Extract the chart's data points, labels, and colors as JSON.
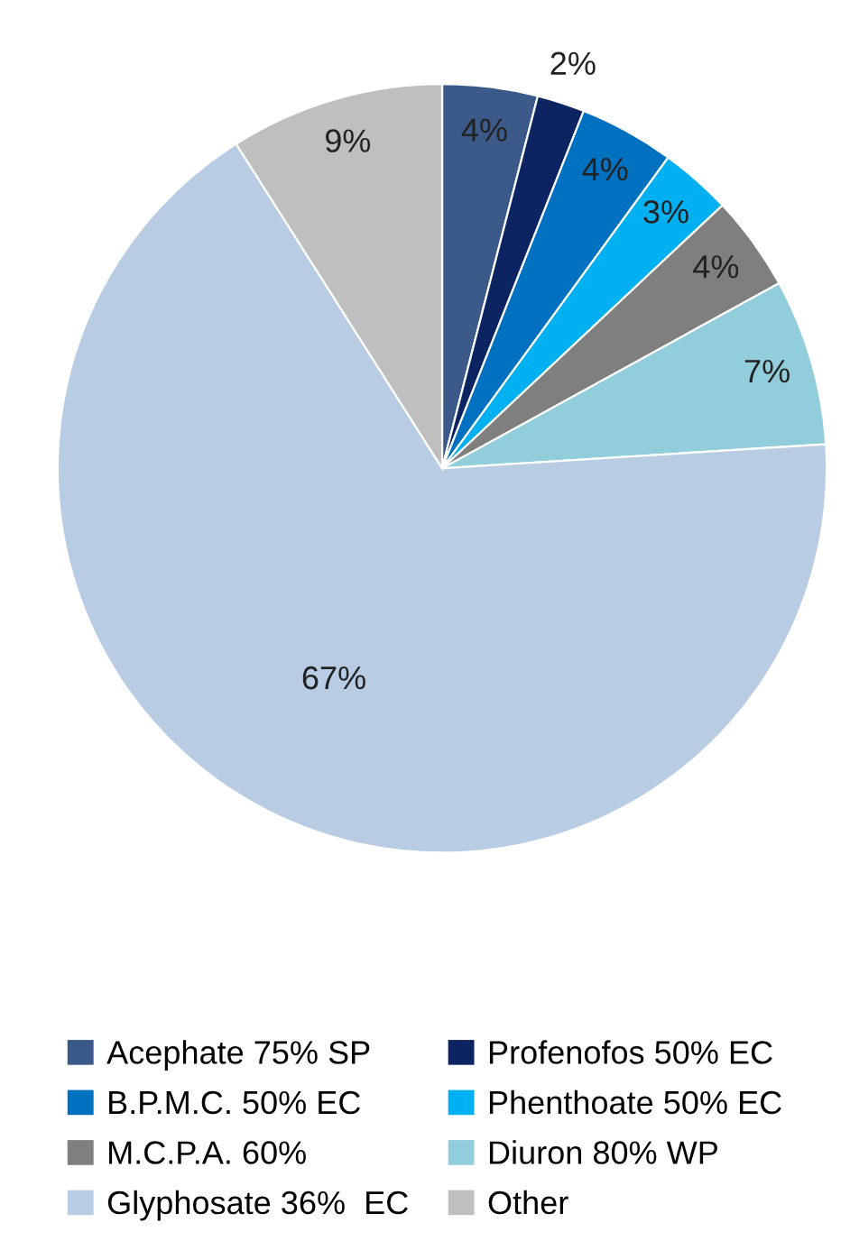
{
  "chart_data": {
    "type": "pie",
    "categories": [
      "Acephate 75% SP",
      "Profenofos 50% EC",
      "B.P.M.C. 50% EC",
      "Phenthoate 50% EC",
      "M.C.P.A. 60%",
      "Diuron 80% WP",
      "Glyphosate 36%  EC",
      "Other"
    ],
    "values": [
      4,
      2,
      4,
      3,
      4,
      7,
      67,
      9
    ],
    "value_labels": [
      "4%",
      "2%",
      "4%",
      "3%",
      "4%",
      "7%",
      "67%",
      "9%"
    ],
    "colors": [
      "#3b5a89",
      "#0c2461",
      "#0070c0",
      "#00b0f0",
      "#7f7f7f",
      "#92cddc",
      "#b8cce4",
      "#bfbfbf"
    ],
    "legend": "bottom"
  }
}
